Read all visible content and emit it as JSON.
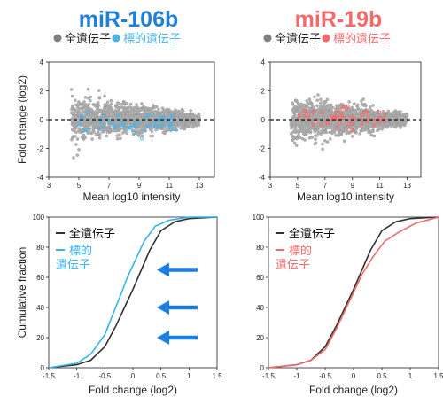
{
  "chart_data": [
    {
      "type": "scatter",
      "title": "miR-106b",
      "title_color": "#1f7fd9",
      "legend": [
        {
          "label": "全遺伝子",
          "color": "#808080"
        },
        {
          "label": "標的遺伝子",
          "color": "#4cb3e6"
        }
      ],
      "xlabel": "Mean log10 intensity",
      "ylabel": "Fold change (log2)",
      "xlim": [
        3,
        14
      ],
      "ylim": [
        -4,
        4
      ],
      "xticks": [
        "3",
        "5",
        "7",
        "9",
        "11",
        "13"
      ],
      "yticks": [
        "4",
        "2",
        "0",
        "-2",
        "-4"
      ],
      "reference_line_y": 0,
      "series": [
        {
          "label": "全遺伝子",
          "color": "#9a9a9a",
          "x_range": [
            4.5,
            13
          ],
          "y_spread": [
            2.3,
            0.3
          ]
        },
        {
          "label": "標的遺伝子",
          "color": "#4cb3e6",
          "x_range": [
            5,
            11
          ],
          "y_center": -0.3
        }
      ]
    },
    {
      "type": "scatter",
      "title": "miR-19b",
      "title_color": "#f26b6b",
      "legend": [
        {
          "label": "全遺伝子",
          "color": "#808080"
        },
        {
          "label": "標的遺伝子",
          "color": "#f26b6b"
        }
      ],
      "xlabel": "Mean log10 intensity",
      "ylabel": "",
      "xlim": [
        3,
        14
      ],
      "ylim": [
        -4,
        4
      ],
      "xticks": [
        "3",
        "5",
        "7",
        "9",
        "11",
        "13"
      ],
      "yticks": [
        "4",
        "2",
        "0",
        "-2",
        "-4"
      ],
      "reference_line_y": 0,
      "series": [
        {
          "label": "全遺伝子",
          "color": "#9a9a9a",
          "x_range": [
            4.5,
            13
          ],
          "y_spread": [
            2.3,
            0.3
          ]
        },
        {
          "label": "標的遺伝子",
          "color": "#f26b6b",
          "x_range": [
            5,
            11
          ],
          "y_center": 0.1
        }
      ]
    },
    {
      "type": "line",
      "xlabel": "Fold change (log2)",
      "ylabel": "Cumulative fraction",
      "xlim": [
        -1.5,
        1.5
      ],
      "ylim": [
        0,
        100
      ],
      "xticks": [
        "-1.5",
        "-1",
        "-0.5",
        "0",
        "0.5",
        "1",
        "1.5"
      ],
      "yticks": [
        "100",
        "80",
        "60",
        "40",
        "20",
        "0"
      ],
      "legend_location": "top-left",
      "arrows_pointing": "left",
      "series": [
        {
          "name": "全遺伝子",
          "color": "#333333",
          "x": [
            -1.5,
            -1.0,
            -0.75,
            -0.5,
            -0.3,
            -0.15,
            0,
            0.15,
            0.3,
            0.5,
            0.75,
            1.0,
            1.5
          ],
          "y": [
            0,
            2,
            5,
            14,
            28,
            40,
            52,
            65,
            78,
            91,
            97,
            99,
            100
          ]
        },
        {
          "name": "標的\n遺伝子",
          "color": "#35b4ef",
          "x": [
            -1.5,
            -1.0,
            -0.75,
            -0.5,
            -0.35,
            -0.2,
            -0.1,
            0.05,
            0.2,
            0.4,
            0.65,
            1.0,
            1.5
          ],
          "y": [
            0,
            3,
            9,
            22,
            36,
            50,
            60,
            72,
            84,
            94,
            98,
            100,
            100
          ]
        }
      ]
    },
    {
      "type": "line",
      "xlabel": "Fold change (log2)",
      "ylabel": "",
      "xlim": [
        -1.5,
        1.5
      ],
      "ylim": [
        0,
        100
      ],
      "xticks": [
        "-1.5",
        "-1",
        "-0.5",
        "0",
        "0.5",
        "1",
        "1.5"
      ],
      "yticks": [
        "100",
        "80",
        "60",
        "40",
        "20",
        "0"
      ],
      "legend_location": "top-left",
      "series": [
        {
          "name": "全遺伝子",
          "color": "#333333",
          "x": [
            -1.5,
            -1.0,
            -0.75,
            -0.5,
            -0.3,
            -0.15,
            0,
            0.15,
            0.3,
            0.5,
            0.75,
            1.0,
            1.5
          ],
          "y": [
            0,
            2,
            5,
            14,
            28,
            40,
            52,
            65,
            78,
            91,
            97,
            99,
            100
          ]
        },
        {
          "name": "標的\n遺伝子",
          "color": "#f26b6b",
          "x": [
            -1.5,
            -1.0,
            -0.75,
            -0.5,
            -0.3,
            -0.15,
            0,
            0.15,
            0.35,
            0.55,
            0.8,
            1.1,
            1.5
          ],
          "y": [
            0,
            2,
            5,
            12,
            26,
            38,
            50,
            62,
            74,
            84,
            90,
            96,
            100
          ]
        }
      ]
    }
  ]
}
